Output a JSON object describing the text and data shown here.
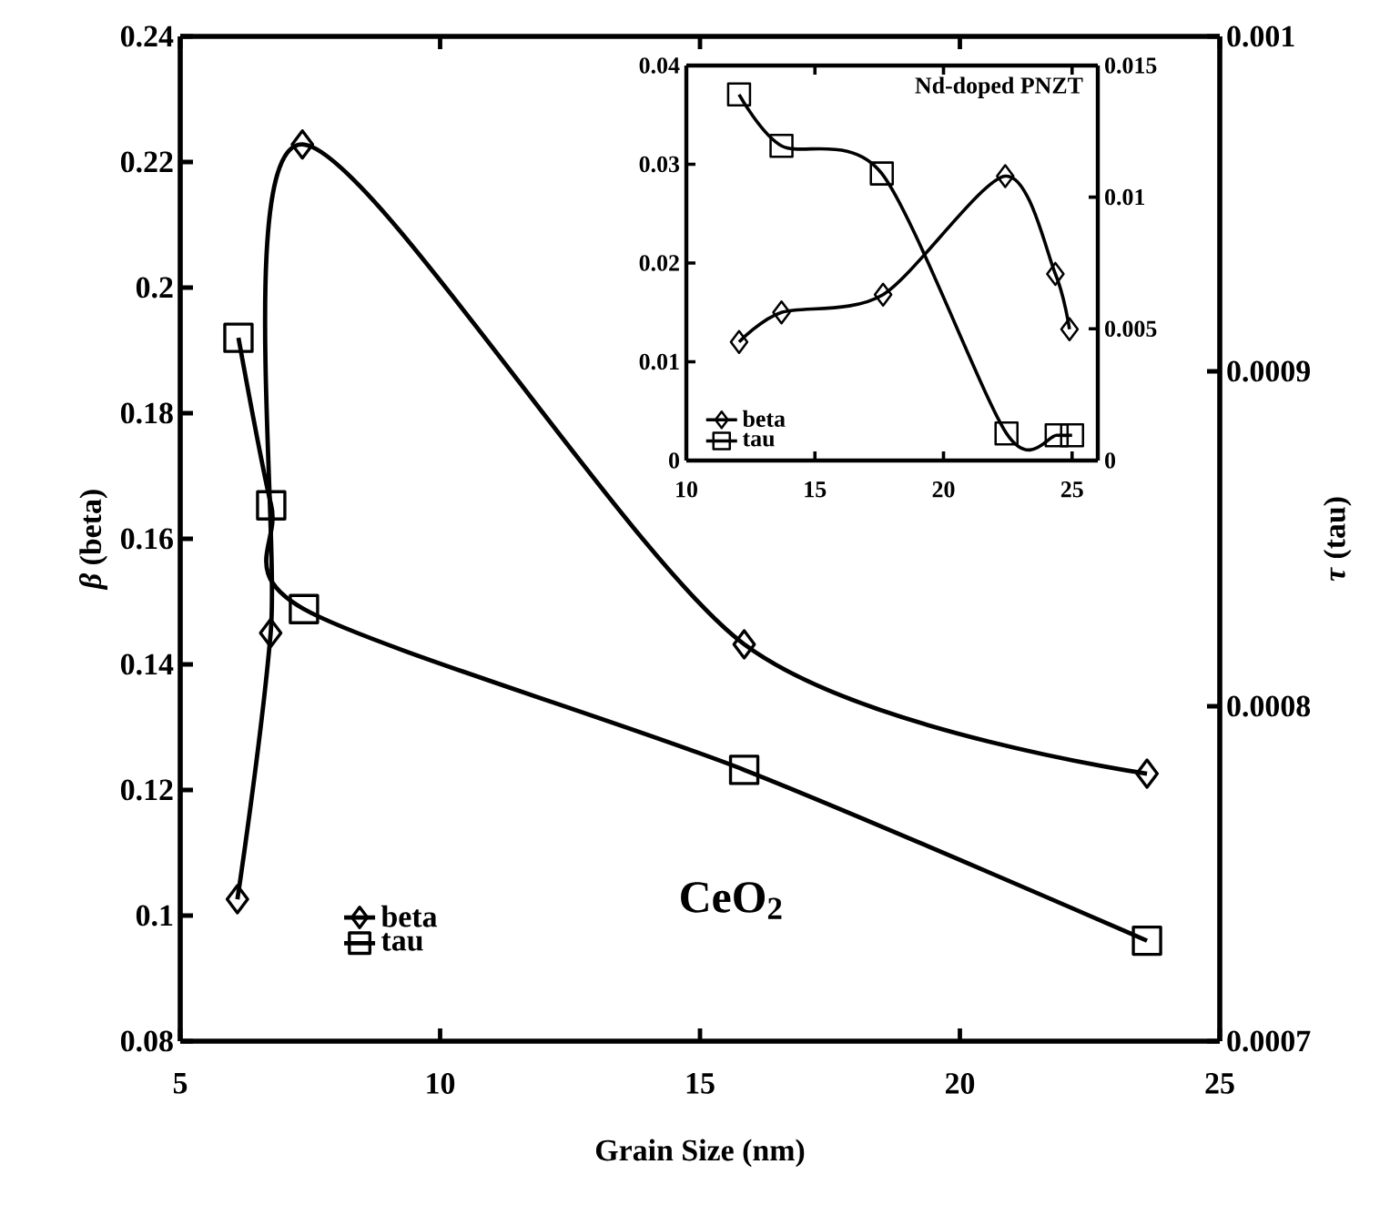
{
  "chart_data": [
    {
      "type": "line",
      "xlabel": "Grain Size (nm)",
      "ylabel": "*β* (beta)",
      "y2label": "*τ* (tau)",
      "annotations": [
        "CeO$_{2}$"
      ],
      "xlim": [
        5,
        25
      ],
      "xticks": [
        5,
        10,
        15,
        20,
        25
      ],
      "ylim": [
        0.08,
        0.24
      ],
      "yticks": [
        0.08,
        0.1,
        0.12,
        0.14,
        0.16,
        0.18,
        0.2,
        0.22,
        0.24
      ],
      "y2lim": [
        0.0007,
        0.001
      ],
      "y2ticks": [
        0.0007,
        0.0008,
        0.0009,
        0.001
      ],
      "legend": "bottom left",
      "grid": false,
      "series": [
        {
          "name": "beta",
          "color": "#000000",
          "marker": "diamond",
          "x": [
            6.1,
            6.74,
            7.35,
            15.85,
            23.6
          ],
          "values": [
            0.1026,
            0.145,
            0.2228,
            0.1432,
            0.1226
          ]
        },
        {
          "name": "tau",
          "color": "#000000",
          "marker": "square",
          "axis": "y2",
          "x": [
            6.12,
            6.75,
            7.38,
            15.85,
            23.6
          ],
          "values": [
            0.00091,
            0.00086,
            0.000829,
            0.000781,
            0.00073
          ]
        }
      ]
    },
    {
      "type": "line",
      "title": "Nd-doped PNZT",
      "xlim": [
        10,
        26
      ],
      "xticks": [
        10,
        15,
        20,
        25
      ],
      "ylim": [
        0,
        0.04
      ],
      "yticks": [
        0,
        0.01,
        0.02,
        0.03,
        0.04
      ],
      "y2lim": [
        0,
        0.015
      ],
      "y2ticks": [
        0,
        0.005,
        0.01,
        0.015
      ],
      "legend": "bottom left",
      "grid": false,
      "series": [
        {
          "name": "beta",
          "color": "#000000",
          "marker": "diamond",
          "x": [
            12.05,
            13.7,
            17.65,
            22.4,
            24.35,
            24.9
          ],
          "values": [
            0.012,
            0.015,
            0.0168,
            0.0288,
            0.0189,
            0.0133
          ]
        },
        {
          "name": "tau",
          "color": "#000000",
          "marker": "square",
          "axis": "y2",
          "x": [
            12.05,
            13.7,
            17.6,
            22.45,
            24.4,
            25.0
          ],
          "values": [
            0.0139,
            0.01195,
            0.0109,
            0.00103,
            0.00096,
            0.00096
          ]
        }
      ]
    }
  ]
}
